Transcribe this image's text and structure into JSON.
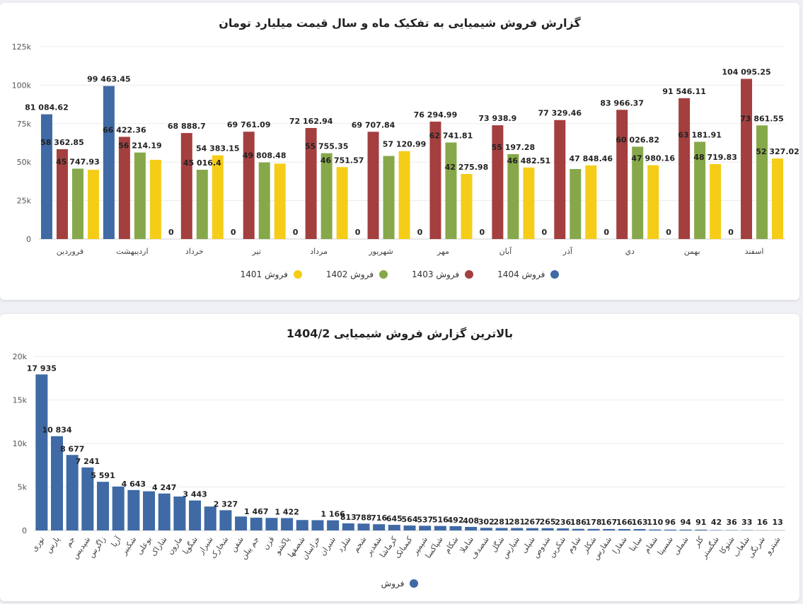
{
  "charts": {
    "monthly": {
      "title": "گزارش فروش شیمیایی به تفکیک ماه و سال قیمت میلیارد تومان",
      "chart_data": {
        "type": "bar",
        "title": "گزارش فروش شیمیایی به تفکیک ماه و سال قیمت میلیارد تومان",
        "ylim": [
          0,
          125000
        ],
        "y_ticks": [
          "0",
          "25k",
          "50k",
          "75k",
          "100k",
          "125k"
        ],
        "y_tick_values": [
          0,
          25000,
          50000,
          75000,
          100000,
          125000
        ],
        "grid": true,
        "legend_position": "bottom",
        "categories": [
          "فروردین",
          "اردیبهشت",
          "خرداد",
          "تیر",
          "مرداد",
          "شهریور",
          "مهر",
          "آبان",
          "آذر",
          "دي",
          "بهمن",
          "اسفند"
        ],
        "series": [
          {
            "name": "فروش 1404",
            "color": "#3f6aa5",
            "values": [
              81084.62,
              99463.45,
              0,
              0,
              0,
              0,
              0,
              0,
              0,
              0,
              0,
              0
            ],
            "labels": [
              "81 084.62",
              "99 463.45",
              "0",
              "0",
              "0",
              "0",
              "0",
              "0",
              "0",
              "0",
              "0",
              "0"
            ]
          },
          {
            "name": "فروش 1403",
            "color": "#a43f3f",
            "values": [
              58362.85,
              66422.36,
              68888.7,
              69761.09,
              72162.94,
              69707.84,
              76294.99,
              73938.9,
              77329.46,
              83966.37,
              91546.11,
              104095.25
            ],
            "labels": [
              "58 362.85",
              "66 422.36",
              "68 888.7",
              "69 761.09",
              "72 162.94",
              "69 707.84",
              "76 294.99",
              "73 938.9",
              "77 329.46",
              "83 966.37",
              "91 546.11",
              "104 095.25"
            ]
          },
          {
            "name": "فروش 1402",
            "color": "#86a84a",
            "values": [
              45747.93,
              56214.19,
              45016.4,
              49808.48,
              55755.35,
              54000,
              62741.81,
              55197.28,
              45500,
              60026.82,
              63181.91,
              73861.55
            ],
            "labels": [
              "45 747.93",
              "56 214.19",
              "45 016.4",
              "49 808.48",
              "55 755.35",
              "",
              "62 741.81",
              "55 197.28",
              "",
              "60 026.82",
              "63 181.91",
              "73 861.55"
            ]
          },
          {
            "name": "فروش 1401",
            "color": "#f5cd18",
            "values": [
              45000,
              51500,
              54383.15,
              49000,
              46751.57,
              57120.99,
              42275.98,
              46482.51,
              47848.46,
              47980.16,
              48719.83,
              52327.02
            ],
            "labels": [
              "",
              "",
              "54 383.15",
              "",
              "46 751.57",
              "57 120.99",
              "42 275.98",
              "46 482.51",
              "47 848.46",
              "47 980.16",
              "48 719.83",
              "52 327.02"
            ]
          }
        ]
      },
      "legend": [
        {
          "label": "فروش 1404",
          "color": "#3f6aa5"
        },
        {
          "label": "فروش 1403",
          "color": "#a43f3f"
        },
        {
          "label": "فروش 1402",
          "color": "#86a84a"
        },
        {
          "label": "فروش 1401",
          "color": "#f5cd18"
        }
      ]
    },
    "top": {
      "title": "بالاترین گزارش فروش شیمیایی 1404/2",
      "chart_data": {
        "type": "bar",
        "title": "بالاترین گزارش فروش شیمیایی 1404/2",
        "ylim": [
          0,
          20000
        ],
        "y_ticks": [
          "0",
          "5k",
          "10k",
          "15k",
          "20k"
        ],
        "y_tick_values": [
          0,
          5000,
          10000,
          15000,
          20000
        ],
        "grid": true,
        "legend_position": "bottom",
        "categories": [
          "نوری",
          "پارس",
          "جم",
          "شپدیس",
          "زاگرس",
          "آریا",
          "شکبیر",
          "بوعلی",
          "شاراک",
          "مارون",
          "شگویا",
          "شیراز",
          "شخارک",
          "شفن",
          "جم پیلن",
          "قزن",
          "پاکشو",
          "شصفها",
          "خراسان",
          "شیران",
          "شلرد",
          "شجم",
          "شغدیر",
          "کرماشا",
          "کیمیاتک",
          "شپمپر",
          "شپاکسا",
          "شکام",
          "شاملا",
          "شصدف",
          "شگل",
          "شپارس",
          "شپلی",
          "شدوص",
          "شکربن",
          "شاوم",
          "شکلر",
          "شفارس",
          "شفارا",
          "ساینا",
          "شفام",
          "شسینا",
          "شملی",
          "کلر",
          "شگستر",
          "شتوکا",
          "شلعاب",
          "شرنگی",
          "شیترو"
        ],
        "series": [
          {
            "name": "فروش",
            "color": "#3f6aa5",
            "values": [
              17935,
              10834,
              8677,
              7241,
              5591,
              5050,
              4643,
              4500,
              4247,
              3900,
              3443,
              2750,
              2327,
              1600,
              1467,
              1440,
              1422,
              1200,
              1180,
              1166,
              813,
              788,
              716,
              645,
              564,
              537,
              516,
              492,
              408,
              302,
              281,
              281,
              267,
              265,
              236,
              186,
              178,
              167,
              166,
              163,
              110,
              96,
              94,
              91,
              42,
              36,
              33,
              16,
              13
            ],
            "labels": [
              "17 935",
              "10 834",
              "8 677",
              "7 241",
              "5 591",
              "",
              "4 643",
              "",
              "4 247",
              "",
              "3 443",
              "",
              "2 327",
              "",
              "1 467",
              "",
              "1 422",
              "",
              "",
              "1 166",
              "813",
              "788",
              "716",
              "645",
              "564",
              "537",
              "516",
              "492",
              "408",
              "302",
              "281",
              "281",
              "267",
              "265",
              "236",
              "186",
              "178",
              "167",
              "166",
              "163",
              "110",
              "96",
              "94",
              "91",
              "42",
              "36",
              "33",
              "16",
              "13"
            ]
          }
        ]
      },
      "legend": [
        {
          "label": "فروش",
          "color": "#3f6aa5"
        }
      ]
    }
  }
}
